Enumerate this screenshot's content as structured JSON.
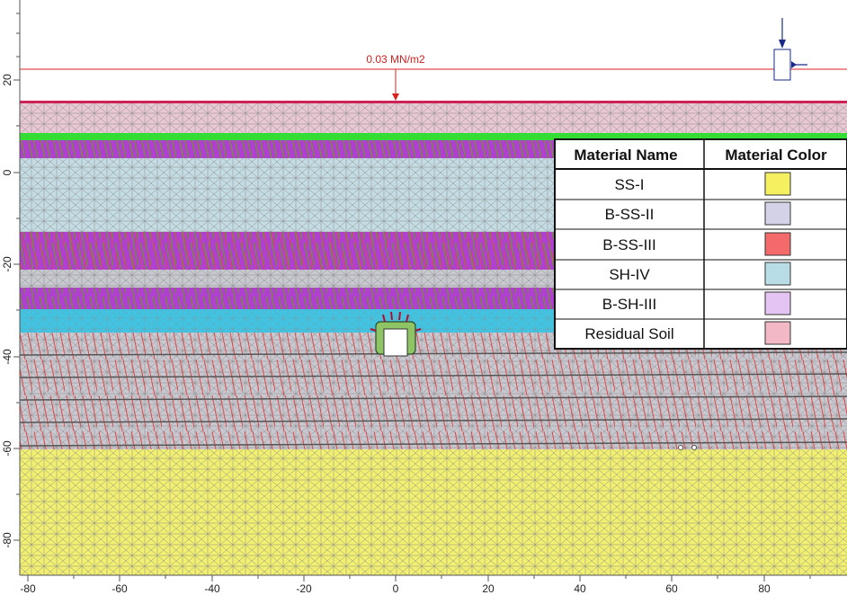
{
  "x_axis": {
    "ticks": [
      "-80",
      "-60",
      "-40",
      "-20",
      "0",
      "20",
      "40",
      "60",
      "80"
    ]
  },
  "y_axis": {
    "ticks": [
      "20",
      "0",
      "-20",
      "-40",
      "-60",
      "-80"
    ]
  },
  "load": {
    "label": "0.03 MN/m2",
    "color": "#dd2222"
  },
  "legend": {
    "header_name": "Material Name",
    "header_color": "Material Color",
    "rows": [
      {
        "name": "SS-I",
        "color": "#f5f060"
      },
      {
        "name": "B-SS-II",
        "color": "#d4d2e6"
      },
      {
        "name": "B-SS-III",
        "color": "#f46a6a"
      },
      {
        "name": "SH-IV",
        "color": "#b9dde6"
      },
      {
        "name": "B-SH-III",
        "color": "#e4c4f2"
      },
      {
        "name": "Residual Soil",
        "color": "#f2b8c6"
      }
    ]
  },
  "layer_colors": {
    "residual": "#e8c8d2",
    "green": "#33dd33",
    "purple": "#b040d0",
    "shale": "#c4dde4",
    "grey": "#c8c8d0",
    "cyan": "#40c4e4",
    "sandstone": "#f2f070",
    "red_joints": "#ee4444"
  }
}
